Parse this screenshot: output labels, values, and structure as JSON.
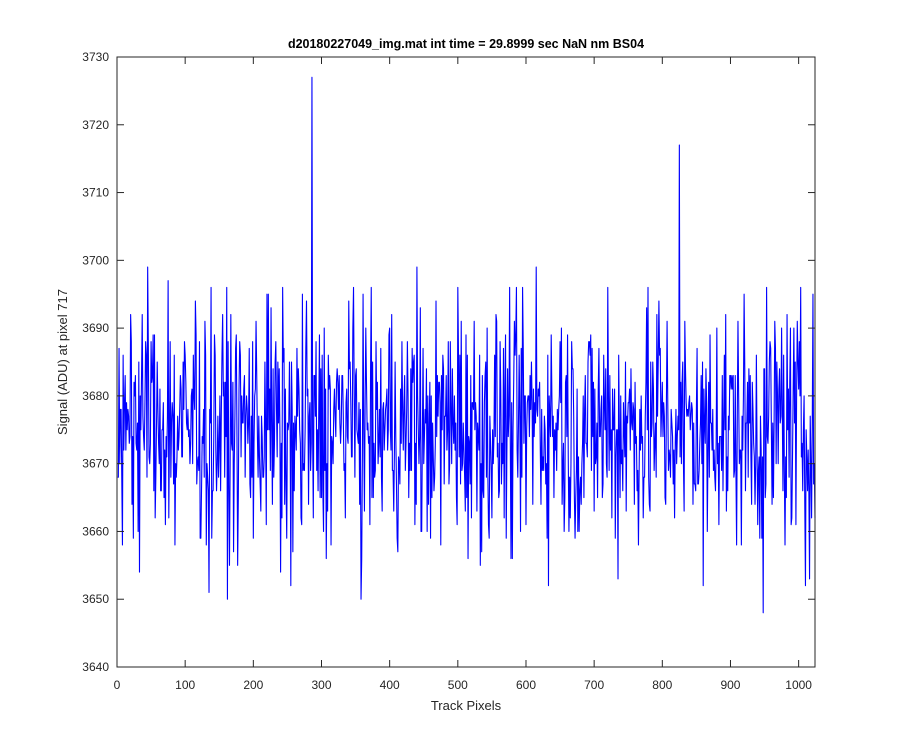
{
  "chart_data": {
    "type": "line",
    "title": "d20180227049_img.mat int time = 29.8999 sec  NaN nm BS04",
    "xlabel": "Track Pixels",
    "ylabel": "Signal (ADU) at pixel 717",
    "xlim": [
      0,
      1024
    ],
    "ylim": [
      3640,
      3730
    ],
    "xticks": [
      0,
      100,
      200,
      300,
      400,
      500,
      600,
      700,
      800,
      900,
      1000
    ],
    "yticks": [
      3640,
      3650,
      3660,
      3670,
      3680,
      3690,
      3700,
      3710,
      3720,
      3730
    ],
    "grid": false,
    "legend": "none",
    "series_color": "#0000ff",
    "series": [
      {
        "x_start": 1,
        "x_step": 1,
        "baseline_mean": 3675.5,
        "baseline_range": [
          3648,
          3699
        ],
        "values_sampled": [
          [
            1,
            3668
          ],
          [
            5,
            3678
          ],
          [
            8,
            3658
          ],
          [
            12,
            3683
          ],
          [
            20,
            3692
          ],
          [
            33,
            3654
          ],
          [
            45,
            3699
          ],
          [
            75,
            3697
          ],
          [
            85,
            3658
          ],
          [
            115,
            3694
          ],
          [
            135,
            3651
          ],
          [
            155,
            3692
          ],
          [
            165,
            3655
          ],
          [
            200,
            3659
          ],
          [
            220,
            3695
          ],
          [
            240,
            3654
          ],
          [
            255,
            3652
          ],
          [
            270,
            3662
          ],
          [
            286,
            3727
          ],
          [
            288,
            3662
          ],
          [
            300,
            3665
          ],
          [
            340,
            3694
          ],
          [
            358,
            3650
          ],
          [
            380,
            3688
          ],
          [
            400,
            3690
          ],
          [
            420,
            3672
          ],
          [
            440,
            3699
          ],
          [
            455,
            3660
          ],
          [
            500,
            3696
          ],
          [
            520,
            3662
          ],
          [
            580,
            3656
          ],
          [
            615,
            3699
          ],
          [
            650,
            3688
          ],
          [
            680,
            3668
          ],
          [
            720,
            3696
          ],
          [
            735,
            3653
          ],
          [
            760,
            3682
          ],
          [
            795,
            3694
          ],
          [
            825,
            3717
          ],
          [
            860,
            3652
          ],
          [
            880,
            3690
          ],
          [
            910,
            3677
          ],
          [
            948,
            3648
          ],
          [
            975,
            3690
          ],
          [
            1010,
            3652
          ],
          [
            1024,
            3662
          ]
        ]
      }
    ]
  }
}
